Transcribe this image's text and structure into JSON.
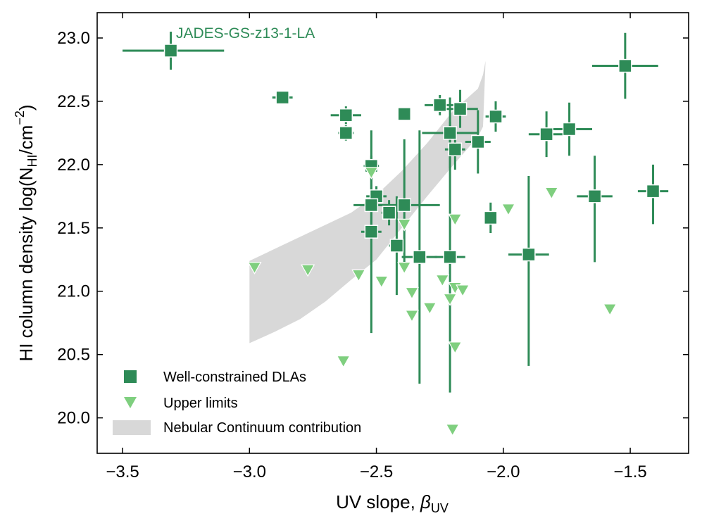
{
  "chart_data": {
    "type": "scatter",
    "title": "",
    "xlabel": "UV slope, ",
    "xlabel_symbol": "β",
    "xlabel_sub": "UV",
    "ylabel": "HI column density log(N",
    "ylabel_sub": "HI",
    "ylabel_unit": "/cm",
    "ylabel_sup": "−2",
    "ylabel_close": ")",
    "xlim": [
      -3.6,
      -1.27
    ],
    "ylim": [
      19.72,
      23.2
    ],
    "xticks": [
      -3.5,
      -3.0,
      -2.5,
      -2.0,
      -1.5
    ],
    "xtick_labels": [
      "−3.5",
      "−3.0",
      "−2.5",
      "−2.0",
      "−1.5"
    ],
    "yticks": [
      20.0,
      20.5,
      21.0,
      21.5,
      22.0,
      22.5,
      23.0
    ],
    "ytick_labels": [
      "20.0",
      "20.5",
      "21.0",
      "21.5",
      "22.0",
      "22.5",
      "23.0"
    ],
    "grid": false,
    "legend_position": "lower-left",
    "colors": {
      "well_constrained": "#2e8b57",
      "upper_limits": "#7fcf7f",
      "nebular": "#d8d8d8"
    },
    "annotation": {
      "text": "JADES-GS-z13-1-LA",
      "x": -3.31,
      "y": 22.9
    },
    "legend": [
      {
        "label": "Well-constrained DLAs",
        "marker": "square"
      },
      {
        "label": "Upper limits",
        "marker": "triangle-down"
      },
      {
        "label": "Nebular Continuum contribution",
        "marker": "patch"
      }
    ],
    "series": [
      {
        "name": "Well-constrained DLAs",
        "points": [
          {
            "x": -3.31,
            "y": 22.9,
            "xerr": [
              0.19,
              0.21
            ],
            "yerr": [
              0.15,
              0.15
            ]
          },
          {
            "x": -2.87,
            "y": 22.53,
            "xerr": [
              0.04,
              0.04
            ],
            "yerr": [
              0.05,
              0.05
            ]
          },
          {
            "x": -2.62,
            "y": 22.39,
            "xerr": [
              0.06,
              0.06
            ],
            "yerr": [
              0.07,
              0.07
            ]
          },
          {
            "x": -2.62,
            "y": 22.25,
            "xerr": [
              0.03,
              0.03
            ],
            "yerr": [
              0.06,
              0.06
            ]
          },
          {
            "x": -2.39,
            "y": 22.4,
            "xerr": [
              0.0,
              0.0
            ],
            "yerr": [
              0.0,
              0.0
            ]
          },
          {
            "x": -2.25,
            "y": 22.47,
            "xerr": [
              0.06,
              0.06
            ],
            "yerr": [
              0.08,
              0.08
            ]
          },
          {
            "x": -2.17,
            "y": 22.44,
            "xerr": [
              0.07,
              0.07
            ],
            "yerr": [
              0.15,
              0.15
            ]
          },
          {
            "x": -2.03,
            "y": 22.38,
            "xerr": [
              0.04,
              0.04
            ],
            "yerr": [
              0.12,
              0.12
            ]
          },
          {
            "x": -2.21,
            "y": 22.25,
            "xerr": [
              0.11,
              0.11
            ],
            "yerr": [
              0.28,
              0.28
            ]
          },
          {
            "x": -2.19,
            "y": 22.12,
            "xerr": [
              0.04,
              0.04
            ],
            "yerr": [
              0.16,
              0.16
            ]
          },
          {
            "x": -2.1,
            "y": 22.18,
            "xerr": [
              0.05,
              0.05
            ],
            "yerr": [
              0.25,
              0.25
            ]
          },
          {
            "x": -1.83,
            "y": 22.24,
            "xerr": [
              0.07,
              0.07
            ],
            "yerr": [
              0.18,
              0.18
            ]
          },
          {
            "x": -1.74,
            "y": 22.28,
            "xerr": [
              0.09,
              0.09
            ],
            "yerr": [
              0.21,
              0.21
            ]
          },
          {
            "x": -1.52,
            "y": 22.78,
            "xerr": [
              0.13,
              0.13
            ],
            "yerr": [
              0.26,
              0.26
            ]
          },
          {
            "x": -2.52,
            "y": 21.99,
            "xerr": [
              0.03,
              0.03
            ],
            "yerr": [
              0.08,
              0.08
            ]
          },
          {
            "x": -2.5,
            "y": 21.75,
            "xerr": [
              0.04,
              0.04
            ],
            "yerr": [
              0.08,
              0.08
            ]
          },
          {
            "x": -2.52,
            "y": 21.68,
            "xerr": [
              0.07,
              0.07
            ],
            "yerr": [
              0.25,
              0.25
            ]
          },
          {
            "x": -2.45,
            "y": 21.62,
            "xerr": [
              0.03,
              0.03
            ],
            "yerr": [
              0.1,
              0.1
            ]
          },
          {
            "x": -2.39,
            "y": 21.68,
            "xerr": [
              0.14,
              0.14
            ],
            "yerr": [
              0.52,
              0.52
            ]
          },
          {
            "x": -2.52,
            "y": 21.47,
            "xerr": [
              0.04,
              0.04
            ],
            "yerr": [
              0.8,
              0.8
            ]
          },
          {
            "x": -2.42,
            "y": 21.36,
            "xerr": [
              0.03,
              0.03
            ],
            "yerr": [
              0.39,
              0.39
            ]
          },
          {
            "x": -2.33,
            "y": 21.27,
            "xerr": [
              0.07,
              0.07
            ],
            "yerr": [
              1.0,
              1.0
            ]
          },
          {
            "x": -2.21,
            "y": 21.27,
            "xerr": [
              0.06,
              0.06
            ],
            "yerr": [
              1.07,
              1.07
            ]
          },
          {
            "x": -2.05,
            "y": 21.58,
            "xerr": [
              0.0,
              0.0
            ],
            "yerr": [
              0.12,
              0.12
            ]
          },
          {
            "x": -1.9,
            "y": 21.29,
            "xerr": [
              0.08,
              0.08
            ],
            "yerr": [
              0.88,
              0.62
            ]
          },
          {
            "x": -1.64,
            "y": 21.75,
            "xerr": [
              0.07,
              0.07
            ],
            "yerr": [
              0.52,
              0.32
            ]
          },
          {
            "x": -1.41,
            "y": 21.79,
            "xerr": [
              0.06,
              0.06
            ],
            "yerr": [
              0.26,
              0.21
            ]
          }
        ]
      },
      {
        "name": "Upper limits",
        "points": [
          {
            "x": -2.52,
            "y": 21.94
          },
          {
            "x": -1.81,
            "y": 21.78
          },
          {
            "x": -1.98,
            "y": 21.65
          },
          {
            "x": -2.39,
            "y": 21.53
          },
          {
            "x": -2.19,
            "y": 21.57
          },
          {
            "x": -2.98,
            "y": 21.19
          },
          {
            "x": -2.77,
            "y": 21.17
          },
          {
            "x": -2.57,
            "y": 21.13
          },
          {
            "x": -2.39,
            "y": 21.19
          },
          {
            "x": -2.48,
            "y": 21.08
          },
          {
            "x": -2.24,
            "y": 21.09
          },
          {
            "x": -2.36,
            "y": 20.99
          },
          {
            "x": -2.19,
            "y": 21.03
          },
          {
            "x": -2.16,
            "y": 21.01
          },
          {
            "x": -2.21,
            "y": 20.94
          },
          {
            "x": -2.29,
            "y": 20.87
          },
          {
            "x": -2.36,
            "y": 20.81
          },
          {
            "x": -1.58,
            "y": 20.86
          },
          {
            "x": -2.19,
            "y": 20.56
          },
          {
            "x": -2.63,
            "y": 20.45
          },
          {
            "x": -2.2,
            "y": 19.91
          }
        ]
      }
    ],
    "nebular_band": {
      "upper": [
        [
          -3.0,
          21.24
        ],
        [
          -2.8,
          21.43
        ],
        [
          -2.6,
          21.62
        ],
        [
          -2.5,
          21.76
        ],
        [
          -2.4,
          21.95
        ],
        [
          -2.3,
          22.17
        ],
        [
          -2.2,
          22.42
        ],
        [
          -2.1,
          22.6
        ],
        [
          -2.08,
          22.71
        ],
        [
          -2.07,
          22.82
        ]
      ],
      "lower": [
        [
          -3.0,
          20.59
        ],
        [
          -2.9,
          20.68
        ],
        [
          -2.8,
          20.78
        ],
        [
          -2.7,
          20.92
        ],
        [
          -2.6,
          21.09
        ],
        [
          -2.5,
          21.25
        ],
        [
          -2.4,
          21.5
        ],
        [
          -2.3,
          21.75
        ],
        [
          -2.2,
          21.99
        ],
        [
          -2.1,
          22.22
        ],
        [
          -2.08,
          22.3
        ]
      ]
    }
  }
}
